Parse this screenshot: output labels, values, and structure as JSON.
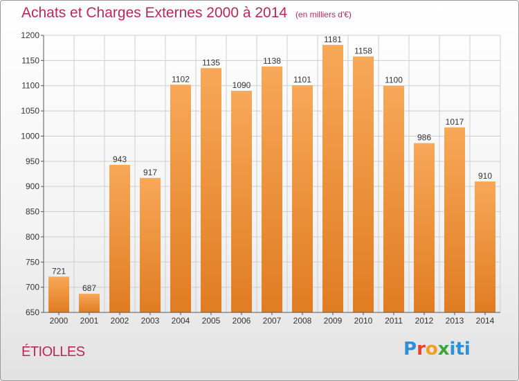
{
  "header": {
    "title": "Achats et Charges Externes 2000 à 2014",
    "subtitle": "(en milliers d'€)"
  },
  "footer": {
    "city": "ÉTIOLLES",
    "logo_text": [
      "P",
      "r",
      "o",
      "x",
      "iti"
    ]
  },
  "colors": {
    "title": "#b8275a",
    "bar_light": "#f7a858",
    "bar_dark": "#e07c22",
    "grid": "#cfcfcf"
  },
  "chart_data": {
    "type": "bar",
    "title": "Achats et Charges Externes 2000 à 2014",
    "xlabel": "",
    "ylabel": "",
    "categories": [
      "2000",
      "2001",
      "2002",
      "2003",
      "2004",
      "2005",
      "2006",
      "2007",
      "2008",
      "2009",
      "2010",
      "2011",
      "2012",
      "2013",
      "2014"
    ],
    "values": [
      721,
      687,
      943,
      917,
      1102,
      1135,
      1090,
      1138,
      1101,
      1181,
      1158,
      1100,
      986,
      1017,
      910
    ],
    "data_labels": [
      "721",
      "687",
      "943",
      "917",
      "1102",
      "1135",
      "1090",
      "1138",
      "1101",
      "1181",
      "1158",
      "1100",
      "986",
      "1017",
      "910"
    ],
    "ylim": [
      650,
      1200
    ],
    "yticks": [
      650,
      700,
      750,
      800,
      850,
      900,
      950,
      1000,
      1050,
      1100,
      1150,
      1200
    ],
    "grid": true,
    "legend": "none"
  }
}
